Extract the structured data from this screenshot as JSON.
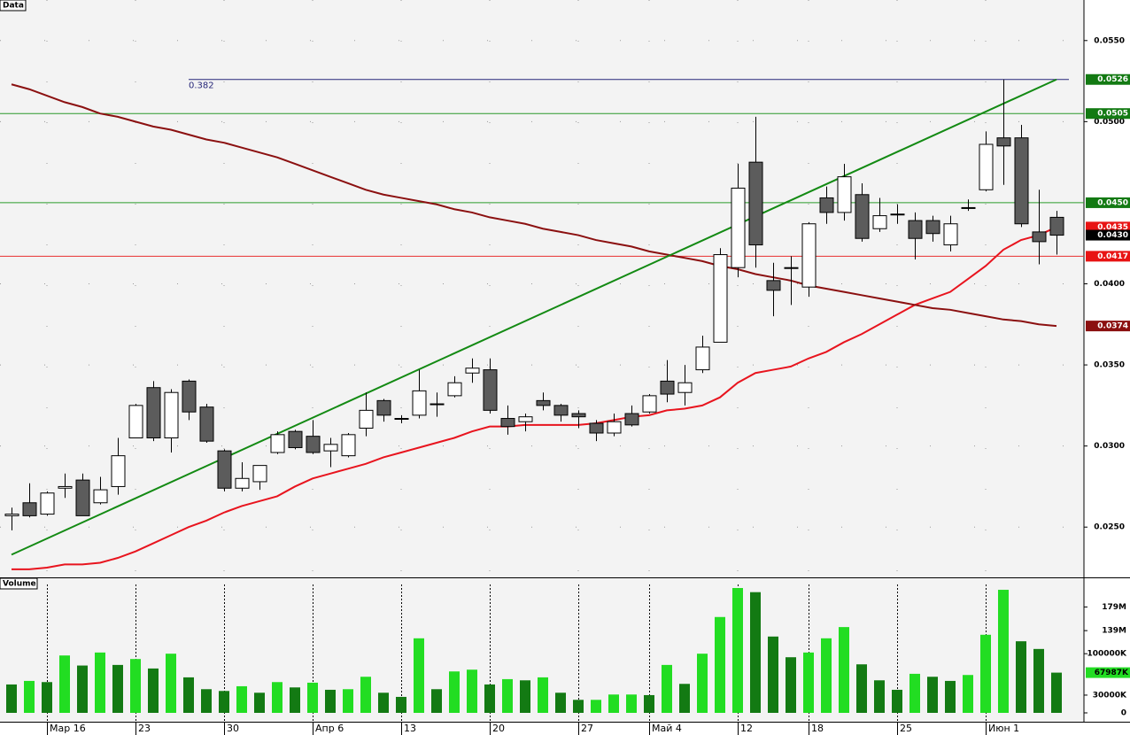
{
  "chart_data": {
    "type": "candlestick",
    "panel_label": "Data",
    "categories": [
      null,
      null,
      "Мар 16",
      null,
      null,
      null,
      null,
      "23",
      null,
      null,
      null,
      null,
      "30",
      null,
      null,
      null,
      null,
      "Апр 6",
      null,
      null,
      null,
      null,
      "13",
      null,
      null,
      null,
      null,
      "20",
      null,
      null,
      null,
      null,
      "27",
      null,
      null,
      null,
      "Май 4",
      null,
      null,
      null,
      null,
      "12",
      null,
      null,
      null,
      "18",
      null,
      null,
      null,
      null,
      "25",
      null,
      null,
      null,
      null,
      "Июн 1",
      null,
      null,
      null,
      null
    ],
    "open": [
      0.0257,
      0.0265,
      0.0258,
      0.0274,
      0.0279,
      0.0265,
      0.0275,
      0.0305,
      0.0336,
      0.0305,
      0.034,
      0.0324,
      0.0297,
      0.0274,
      0.0278,
      0.0296,
      0.0309,
      0.0306,
      0.0297,
      0.0294,
      0.0311,
      0.0328,
      0.0317,
      0.0319,
      0.0326,
      0.0331,
      0.0345,
      0.0347,
      0.0317,
      0.0315,
      0.0328,
      0.0325,
      0.032,
      0.0314,
      0.0308,
      0.032,
      0.0321,
      0.034,
      0.0333,
      0.0347,
      0.0364,
      0.041,
      0.0475,
      0.0402,
      0.041,
      0.0398,
      0.0453,
      0.0444,
      0.0455,
      0.0434,
      0.0443,
      0.0439,
      0.0439,
      0.0424,
      0.0447,
      0.0458,
      0.049,
      0.049,
      0.0432,
      0.0441
    ],
    "high": [
      0.0262,
      0.0277,
      0.0272,
      0.0283,
      0.0283,
      0.0281,
      0.0305,
      0.0326,
      0.034,
      0.0335,
      0.0341,
      0.0326,
      0.0298,
      0.029,
      0.0288,
      0.0309,
      0.031,
      0.0316,
      0.0305,
      0.0308,
      0.0333,
      0.0329,
      0.0319,
      0.0347,
      0.0333,
      0.0343,
      0.0354,
      0.0354,
      0.0325,
      0.032,
      0.0333,
      0.0326,
      0.0322,
      0.0316,
      0.032,
      0.0325,
      0.0332,
      0.0353,
      0.035,
      0.0368,
      0.0422,
      0.0474,
      0.0503,
      0.0413,
      0.0417,
      0.0438,
      0.046,
      0.0474,
      0.0462,
      0.0453,
      0.0449,
      0.0444,
      0.0442,
      0.0442,
      0.0452,
      0.0494,
      0.0526,
      0.0498,
      0.0458,
      0.0445
    ],
    "low": [
      0.0248,
      0.0256,
      0.0257,
      0.0268,
      0.0257,
      0.0264,
      0.027,
      0.0305,
      0.0303,
      0.0296,
      0.0316,
      0.0302,
      0.0272,
      0.0272,
      0.0273,
      0.0295,
      0.0298,
      0.0295,
      0.0287,
      0.0293,
      0.0306,
      0.0315,
      0.0314,
      0.0317,
      0.0318,
      0.033,
      0.0339,
      0.032,
      0.0307,
      0.0309,
      0.0322,
      0.0315,
      0.0311,
      0.0303,
      0.0306,
      0.0312,
      0.032,
      0.0327,
      0.0325,
      0.0345,
      0.0364,
      0.0404,
      0.041,
      0.038,
      0.0387,
      0.0392,
      0.0437,
      0.0439,
      0.0426,
      0.0432,
      0.0437,
      0.0415,
      0.0426,
      0.042,
      0.0445,
      0.0457,
      0.0461,
      0.0435,
      0.0412,
      0.0418
    ],
    "close": [
      0.0258,
      0.0257,
      0.0271,
      0.0275,
      0.0257,
      0.0273,
      0.0294,
      0.0325,
      0.0305,
      0.0333,
      0.0321,
      0.0303,
      0.0274,
      0.028,
      0.0288,
      0.0307,
      0.0299,
      0.0296,
      0.0301,
      0.0307,
      0.0322,
      0.0319,
      0.0317,
      0.0334,
      0.0326,
      0.0339,
      0.0348,
      0.0322,
      0.0312,
      0.0318,
      0.0325,
      0.0319,
      0.0318,
      0.0308,
      0.0315,
      0.0313,
      0.0331,
      0.0332,
      0.0339,
      0.0361,
      0.0418,
      0.0459,
      0.0424,
      0.0396,
      0.041,
      0.0437,
      0.0444,
      0.0466,
      0.0428,
      0.0442,
      0.0443,
      0.0428,
      0.0431,
      0.0437,
      0.0447,
      0.0486,
      0.0485,
      0.0437,
      0.0426,
      0.043
    ],
    "ylim": [
      0.0219,
      0.0575
    ],
    "yticks": [
      {
        "value": 0.025,
        "label": "0.0250"
      },
      {
        "value": 0.03,
        "label": "0.0300"
      },
      {
        "value": 0.035,
        "label": "0.0350"
      },
      {
        "value": 0.04,
        "label": "0.0400"
      },
      {
        "value": 0.05,
        "label": "0.0500"
      },
      {
        "value": 0.055,
        "label": "0.0550"
      }
    ],
    "up_color": "#ffffff",
    "down_color": "#5c5c5c",
    "moving_averages": [
      {
        "color": "#e8141e",
        "values": [
          0.0224,
          0.0224,
          0.0225,
          0.0227,
          0.0227,
          0.0228,
          0.0231,
          0.0235,
          0.024,
          0.0245,
          0.025,
          0.0254,
          0.0259,
          0.0263,
          0.0266,
          0.0269,
          0.0275,
          0.028,
          0.0283,
          0.0286,
          0.0289,
          0.0293,
          0.0296,
          0.0299,
          0.0302,
          0.0305,
          0.0309,
          0.0312,
          0.0312,
          0.0313,
          0.0313,
          0.0313,
          0.0313,
          0.0314,
          0.0316,
          0.0318,
          0.0319,
          0.0322,
          0.0323,
          0.0325,
          0.033,
          0.0339,
          0.0345,
          0.0347,
          0.0349,
          0.0354,
          0.0358,
          0.0364,
          0.0369,
          0.0375,
          0.0381,
          0.0387,
          0.0391,
          0.0395,
          0.0403,
          0.0411,
          0.0421,
          0.0427,
          0.043,
          0.0435
        ]
      },
      {
        "color": "#8b1010",
        "values": [
          0.0523,
          0.052,
          0.0516,
          0.0512,
          0.0509,
          0.0505,
          0.0503,
          0.05,
          0.0497,
          0.0495,
          0.0492,
          0.0489,
          0.0487,
          0.0484,
          0.0481,
          0.0478,
          0.0474,
          0.047,
          0.0466,
          0.0462,
          0.0458,
          0.0455,
          0.0453,
          0.0451,
          0.0449,
          0.0446,
          0.0444,
          0.0441,
          0.0439,
          0.0437,
          0.0434,
          0.0432,
          0.043,
          0.0427,
          0.0425,
          0.0423,
          0.042,
          0.0418,
          0.0416,
          0.0414,
          0.0411,
          0.0409,
          0.0406,
          0.0404,
          0.0402,
          0.0399,
          0.0397,
          0.0395,
          0.0393,
          0.0391,
          0.0389,
          0.0387,
          0.0385,
          0.0384,
          0.0382,
          0.038,
          0.0378,
          0.0377,
          0.0375,
          0.0374
        ]
      }
    ],
    "trendline": {
      "color": "#138a13",
      "x": [
        0,
        59
      ],
      "values": [
        0.0233,
        0.0526
      ]
    },
    "fib": {
      "label": "0.382",
      "value": 0.0526,
      "x": [
        10,
        59.7
      ],
      "color": "#28287a"
    },
    "price_markers": [
      {
        "value": 0.0526,
        "label": "0.0526",
        "color": "#137a13",
        "line": false
      },
      {
        "value": 0.0505,
        "label": "0.0505",
        "color": "#137a13",
        "line": true
      },
      {
        "value": 0.045,
        "label": "0.0450",
        "color": "#137a13",
        "line": true
      },
      {
        "value": 0.0435,
        "label": "0.0435",
        "color": "#e81414",
        "line": false
      },
      {
        "value": 0.043,
        "label": "0.0430",
        "color": "#000000",
        "line": false
      },
      {
        "value": 0.0417,
        "label": "0.0417",
        "color": "#e81414",
        "line": true
      },
      {
        "value": 0.0374,
        "label": "0.0374",
        "color": "#8b1010",
        "line": false
      }
    ],
    "volume": {
      "panel_label": "Volume",
      "values": [
        48,
        54,
        52,
        97,
        80,
        102,
        81,
        91,
        75,
        100,
        60,
        40,
        37,
        45,
        34,
        52,
        43,
        51,
        39,
        40,
        61,
        34,
        27,
        126,
        40,
        70,
        73,
        48,
        57,
        55,
        60,
        34,
        22,
        22,
        31,
        31,
        30,
        81,
        49,
        100,
        162,
        211,
        204,
        129,
        94,
        102,
        126,
        145,
        82,
        55,
        39,
        66,
        61,
        54,
        64,
        132,
        208,
        121,
        108,
        67.987
      ],
      "last_label": "67987K",
      "ylim": [
        0,
        226
      ],
      "yticks": [
        0,
        {
          "value": 30,
          "label": "30000K"
        },
        {
          "value": 100,
          "label": "100000K"
        },
        {
          "value": 139,
          "label": "139M"
        },
        {
          "value": 179,
          "label": "179M"
        }
      ],
      "up_color": "#22dd22",
      "down_color": "#137a13"
    }
  }
}
